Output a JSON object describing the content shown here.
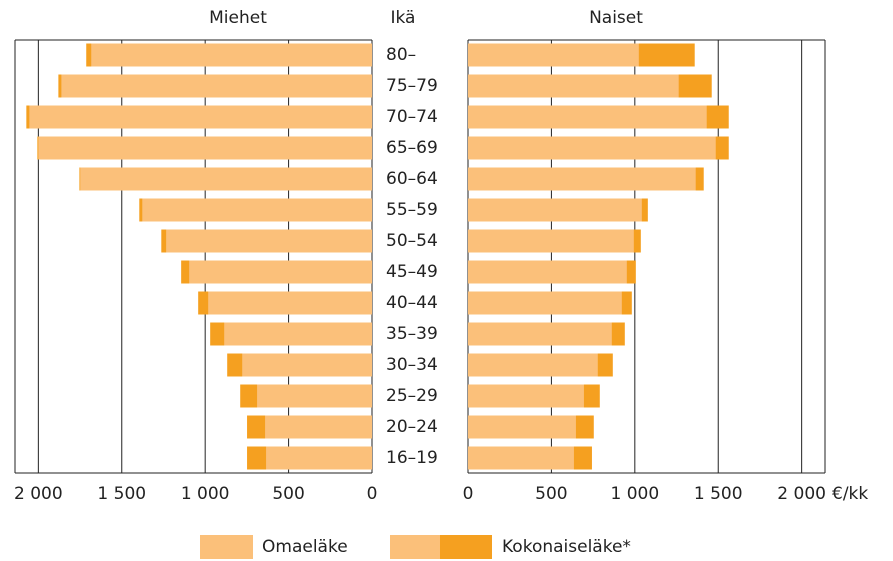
{
  "chart_data": {
    "type": "bar",
    "orientation": "horizontal",
    "category_title": "Ikä",
    "unit": "€/kk",
    "categories": [
      "80–",
      "75–79",
      "70–74",
      "65–69",
      "60–64",
      "55–59",
      "50–54",
      "45–49",
      "40–44",
      "35–39",
      "30–34",
      "25–29",
      "20–24",
      "16–19"
    ],
    "xlim": [
      0,
      2140
    ],
    "xticks": [
      {
        "value": 2000,
        "label": "2 000"
      },
      {
        "value": 1500,
        "label": "1 500"
      },
      {
        "value": 1000,
        "label": "1 000"
      },
      500,
      0
    ],
    "grid": true,
    "panels": [
      {
        "title": "Miehet",
        "direction": "left",
        "series": [
          {
            "name": "Omaeläke",
            "color": "#fbc07a",
            "values": [
              1683,
              1862,
              2054,
              2000,
              1749,
              1377,
              1234,
              1096,
              982,
              886,
              778,
              689,
              641,
              635
            ]
          },
          {
            "name": "Kokonaiseläke*",
            "color": "#f5a020",
            "values": [
              1713,
              1880,
              2072,
              2006,
              1754,
              1395,
              1263,
              1144,
              1042,
              970,
              868,
              790,
              749,
              749
            ]
          }
        ]
      },
      {
        "title": "Naiset",
        "direction": "right",
        "series": [
          {
            "name": "Omaeläke",
            "color": "#fbc07a",
            "values": [
              1024,
              1263,
              1431,
              1485,
              1365,
              1042,
              994,
              952,
              922,
              862,
              778,
              695,
              647,
              635
            ]
          },
          {
            "name": "Kokonaiseläke*",
            "color": "#f5a020",
            "values": [
              1359,
              1461,
              1563,
              1563,
              1413,
              1078,
              1036,
              1006,
              982,
              940,
              868,
              790,
              754,
              743
            ]
          }
        ]
      }
    ]
  }
}
